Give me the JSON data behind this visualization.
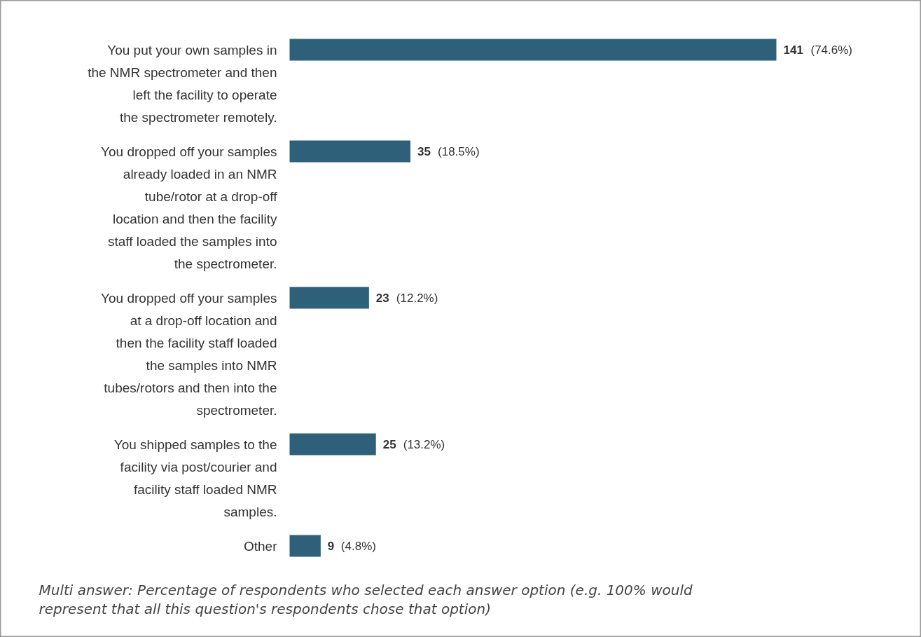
{
  "chart_data": {
    "type": "bar",
    "orientation": "horizontal",
    "categories": [
      "You put your own samples in the NMR spectrometer and then left the facility to operate the spectrometer remotely.",
      "You dropped off your samples already loaded in an NMR tube/rotor at a drop-off location and then the facility staff loaded the samples into the spectrometer.",
      "You dropped off your samples at a drop-off location and then the facility staff loaded the samples into NMR tubes/rotors and then into the spectrometer.",
      "You shipped samples to the facility via post/courier and facility staff loaded NMR samples.",
      "Other"
    ],
    "values": [
      141,
      35,
      23,
      25,
      9
    ],
    "value_labels": [
      "141 (74.6%)",
      "35 (18.5%)",
      "23 (12.2%)",
      "25 (13.2%)",
      "9 (4.8%)"
    ],
    "color": "#2e6079",
    "annotations": [
      "Multi answer: Percentage of respondents who selected each answer option (e.g. 100% would represent that all this question's respondents chose that option)"
    ]
  }
}
